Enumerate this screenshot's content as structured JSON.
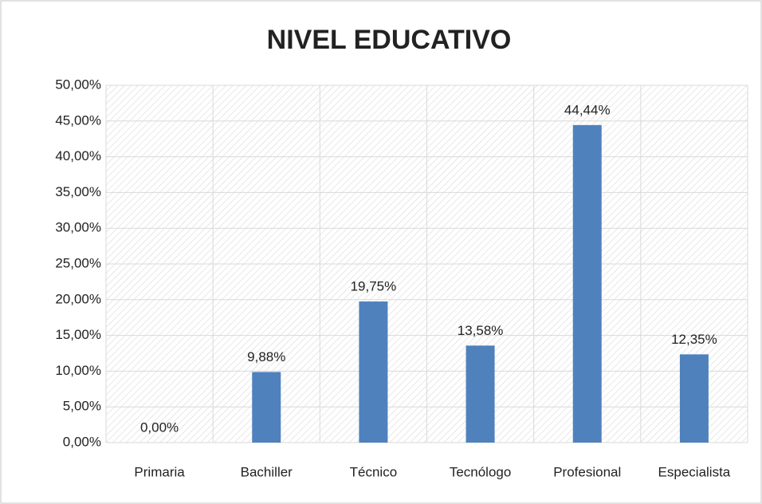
{
  "chart_data": {
    "type": "bar",
    "title": "NIVEL EDUCATIVO",
    "categories": [
      "Primaria",
      "Bachiller",
      "Técnico",
      "Tecnólogo",
      "Profesional",
      "Especialista"
    ],
    "values": [
      0,
      9.88,
      19.75,
      13.58,
      44.44,
      12.35
    ],
    "value_labels": [
      "0,00%",
      "9,88%",
      "19,75%",
      "13,58%",
      "44,44%",
      "12,35%"
    ],
    "color": "#4f81bd",
    "ylim": [
      0,
      50
    ],
    "yticks": [
      {
        "value": 0,
        "label": "0,00%"
      },
      {
        "value": 5,
        "label": "5,00%"
      },
      {
        "value": 10,
        "label": "10,00%"
      },
      {
        "value": 15,
        "label": "15,00%"
      },
      {
        "value": 20,
        "label": "20,00%"
      },
      {
        "value": 25,
        "label": "25,00%"
      },
      {
        "value": 30,
        "label": "30,00%"
      },
      {
        "value": 35,
        "label": "35,00%"
      },
      {
        "value": 40,
        "label": "40,00%"
      },
      {
        "value": 45,
        "label": "45,00%"
      },
      {
        "value": 50,
        "label": "50,00%"
      }
    ],
    "grid": true
  }
}
